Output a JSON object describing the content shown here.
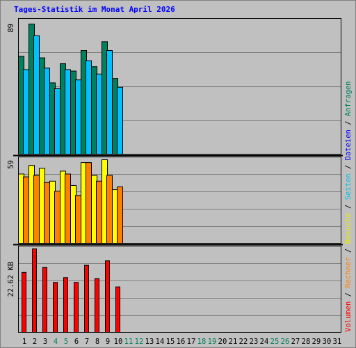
{
  "title": "Tages-Statistik im Monat April 2026",
  "colors": {
    "background": "#c0c0c0",
    "title": "#0000ff",
    "anfragen": "#00805c",
    "dateien": "#00c0ff",
    "seiten": "#00e0ff",
    "besuche": "#ffff00",
    "rechner": "#ff8000",
    "volumen": "#ff0000",
    "separator": "#000000",
    "weekend_day": "#00805c",
    "weekday": "#000000"
  },
  "legend": [
    {
      "text": "Volumen",
      "color": "#ff0000"
    },
    {
      "text": " / ",
      "color": "#000000"
    },
    {
      "text": "Rechner",
      "color": "#ff8000"
    },
    {
      "text": " / ",
      "color": "#000000"
    },
    {
      "text": "Besuche",
      "color": "#e8e800"
    },
    {
      "text": " / ",
      "color": "#000000"
    },
    {
      "text": "Seiten",
      "color": "#00c0e0"
    },
    {
      "text": " / ",
      "color": "#000000"
    },
    {
      "text": "Dateien",
      "color": "#0000ff"
    },
    {
      "text": " / ",
      "color": "#000000"
    },
    {
      "text": "Anfragen",
      "color": "#00805c"
    }
  ],
  "chart_data": {
    "type": "bar",
    "title": "Tages-Statistik im Monat April 2026",
    "categories": [
      "1",
      "2",
      "3",
      "4",
      "5",
      "6",
      "7",
      "8",
      "9",
      "10",
      "11",
      "12",
      "13",
      "14",
      "15",
      "16",
      "17",
      "18",
      "19",
      "20",
      "21",
      "22",
      "23",
      "24",
      "25",
      "26",
      "27",
      "28",
      "29",
      "30",
      "31"
    ],
    "weekend_days": [
      "4",
      "5",
      "11",
      "12",
      "18",
      "19",
      "25",
      "26"
    ],
    "panels": [
      {
        "name": "anfragen_dateien",
        "max_label": "89",
        "max": 89,
        "series": [
          {
            "name": "Anfragen",
            "color": "#00805c",
            "values": [
              67,
              89,
              66,
              49,
              62,
              57,
              71,
              60,
              77,
              52,
              0,
              0,
              0,
              0,
              0,
              0,
              0,
              0,
              0,
              0,
              0,
              0,
              0,
              0,
              0,
              0,
              0,
              0,
              0,
              0,
              0
            ]
          },
          {
            "name": "Dateien",
            "color": "#00c0ff",
            "values": [
              58,
              81,
              59,
              45,
              58,
              51,
              64,
              55,
              71,
              46,
              0,
              0,
              0,
              0,
              0,
              0,
              0,
              0,
              0,
              0,
              0,
              0,
              0,
              0,
              0,
              0,
              0,
              0,
              0,
              0,
              0
            ]
          }
        ]
      },
      {
        "name": "seiten_besuche_rechner",
        "max_label": "59",
        "max": 59,
        "series": [
          {
            "name": "Besuche",
            "color": "#ffff00",
            "values": [
              49,
              55,
              53,
              44,
              51,
              41,
              57,
              48,
              59,
              38,
              0,
              0,
              0,
              0,
              0,
              0,
              0,
              0,
              0,
              0,
              0,
              0,
              0,
              0,
              0,
              0,
              0,
              0,
              0,
              0,
              0
            ]
          },
          {
            "name": "Rechner",
            "color": "#ff8000",
            "values": [
              47,
              48,
              43,
              37,
              49,
              34,
              57,
              44,
              48,
              40,
              0,
              0,
              0,
              0,
              0,
              0,
              0,
              0,
              0,
              0,
              0,
              0,
              0,
              0,
              0,
              0,
              0,
              0,
              0,
              0,
              0
            ]
          }
        ]
      },
      {
        "name": "volumen",
        "max_label": "22.62 KB",
        "max": 22.62,
        "series": [
          {
            "name": "Volumen",
            "color": "#ff0000",
            "values": [
              16.3,
              22.6,
              17.6,
              13.6,
              14.9,
              13.6,
              18.2,
              14.6,
              19.4,
              12.4,
              0,
              0,
              0,
              0,
              0,
              0,
              0,
              0,
              0,
              0,
              0,
              0,
              0,
              0,
              0,
              0,
              0,
              0,
              0,
              0,
              0
            ]
          }
        ]
      }
    ],
    "grid": true
  }
}
